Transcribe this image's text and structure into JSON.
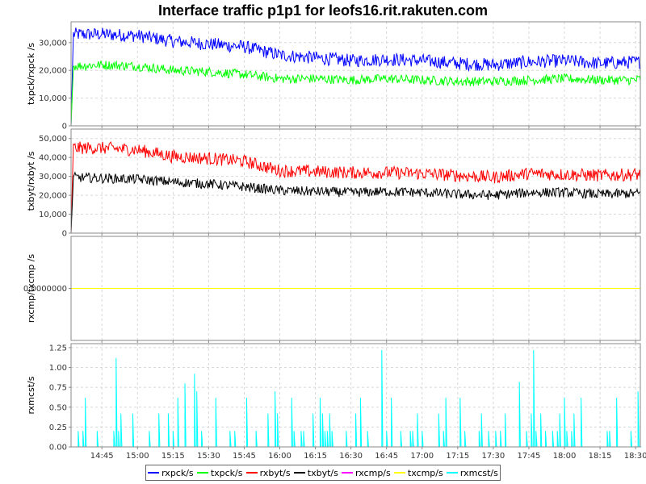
{
  "title": "Interface traffic p1p1 for leofs16.rit.rakuten.com",
  "chart_data": [
    {
      "type": "line",
      "ylabel": "txpck/rxpck /s",
      "ylim": [
        0,
        37500
      ],
      "yticks": [
        0,
        10000,
        20000,
        30000
      ],
      "ytick_labels": [
        "0",
        "10,000",
        "20,000",
        "30,000"
      ],
      "grid": true,
      "series": [
        {
          "name": "rxpck/s",
          "color": "#0000ff",
          "x": [
            "14:32",
            "14:45",
            "15:00",
            "15:15",
            "15:30",
            "15:45",
            "16:00",
            "16:15",
            "16:30",
            "16:45",
            "17:00",
            "17:15",
            "17:30",
            "17:45",
            "18:00",
            "18:15",
            "18:30",
            "18:32"
          ],
          "values": [
            33000,
            33000,
            32500,
            30500,
            29500,
            28500,
            25500,
            24500,
            23500,
            24000,
            23500,
            22500,
            22000,
            23000,
            23500,
            22500,
            23000,
            23000
          ]
        },
        {
          "name": "txpck/s",
          "color": "#00ff00",
          "x": [
            "14:32",
            "14:45",
            "15:00",
            "15:15",
            "15:30",
            "15:45",
            "16:00",
            "16:15",
            "16:30",
            "16:45",
            "17:00",
            "17:15",
            "17:30",
            "17:45",
            "18:00",
            "18:15",
            "18:30",
            "18:32"
          ],
          "values": [
            21500,
            22000,
            21500,
            20000,
            19500,
            18500,
            17000,
            17000,
            16500,
            17000,
            16500,
            16000,
            16000,
            16500,
            17000,
            16500,
            16500,
            17000
          ]
        }
      ]
    },
    {
      "type": "line",
      "ylabel": "txbyt/rxbyt /s",
      "ylim": [
        0,
        55000
      ],
      "yticks": [
        0,
        10000,
        20000,
        30000,
        40000,
        50000
      ],
      "ytick_labels": [
        "0",
        "10,000",
        "20,000",
        "30,000",
        "40,000",
        "50,000"
      ],
      "grid": true,
      "series": [
        {
          "name": "rxbyt/s",
          "color": "#ff0000",
          "x": [
            "14:32",
            "14:45",
            "15:00",
            "15:15",
            "15:30",
            "15:45",
            "16:00",
            "16:15",
            "16:30",
            "16:45",
            "17:00",
            "17:15",
            "17:30",
            "17:45",
            "18:00",
            "18:15",
            "18:30",
            "18:32"
          ],
          "values": [
            45000,
            45000,
            44000,
            40500,
            39500,
            38000,
            33000,
            32500,
            32000,
            32000,
            31500,
            30500,
            29500,
            31500,
            31000,
            30500,
            31000,
            31000
          ]
        },
        {
          "name": "txbyt/s",
          "color": "#000000",
          "x": [
            "14:32",
            "14:45",
            "15:00",
            "15:15",
            "15:30",
            "15:45",
            "16:00",
            "16:15",
            "16:30",
            "16:45",
            "17:00",
            "17:15",
            "17:30",
            "17:45",
            "18:00",
            "18:15",
            "18:30",
            "18:32"
          ],
          "values": [
            29500,
            29000,
            28500,
            27000,
            26000,
            24500,
            22500,
            22000,
            21500,
            22000,
            21500,
            20500,
            20000,
            21500,
            21500,
            20500,
            21000,
            21000
          ]
        }
      ]
    },
    {
      "type": "line",
      "ylabel": "rxcmp/txcmp /s",
      "ylim": [
        -1,
        1
      ],
      "yticks": [
        0
      ],
      "ytick_labels": [
        "0.0000000"
      ],
      "grid": true,
      "series": [
        {
          "name": "rxcmp/s",
          "color": "#ff00ff",
          "x": [
            "14:32",
            "18:32"
          ],
          "values": [
            0,
            0
          ]
        },
        {
          "name": "txcmp/s",
          "color": "#ffff00",
          "x": [
            "14:32",
            "18:32"
          ],
          "values": [
            0,
            0
          ]
        }
      ]
    },
    {
      "type": "line",
      "ylabel": "rxmcst/s",
      "ylim": [
        0,
        1.3
      ],
      "yticks": [
        0,
        0.25,
        0.5,
        0.75,
        1.0,
        1.25
      ],
      "ytick_labels": [
        "0.00",
        "0.25",
        "0.50",
        "0.75",
        "1.00",
        "1.25"
      ],
      "grid": true,
      "series": [
        {
          "name": "rxmcst/s",
          "color": "#00ffff",
          "x": [
            "14:38",
            "14:43",
            "14:51",
            "14:53",
            "15:05",
            "15:17",
            "15:20",
            "15:24",
            "15:25",
            "15:33",
            "15:46",
            "15:58",
            "16:05",
            "16:17",
            "16:21",
            "16:34",
            "16:43",
            "16:47",
            "16:58",
            "17:10",
            "17:16",
            "17:25",
            "17:41",
            "17:47",
            "18:00",
            "18:07",
            "18:22",
            "18:31"
          ],
          "values": [
            0.62,
            0.2,
            1.12,
            0.42,
            0.2,
            0.62,
            0.8,
            0.92,
            0.7,
            0.62,
            0.62,
            0.7,
            0.62,
            0.62,
            0.42,
            0.62,
            1.22,
            0.62,
            0.42,
            0.62,
            0.62,
            0.42,
            0.82,
            1.22,
            0.62,
            0.62,
            0.62,
            0.7
          ]
        }
      ]
    }
  ],
  "xaxis": {
    "xlim": [
      "14:32",
      "18:32"
    ],
    "tick_labels": [
      "14:45",
      "15:00",
      "15:15",
      "15:30",
      "15:45",
      "16:00",
      "16:15",
      "16:30",
      "16:45",
      "17:00",
      "17:15",
      "17:30",
      "17:45",
      "18:00",
      "18:15",
      "18:30"
    ]
  },
  "legend": {
    "placement": "bottom",
    "items": [
      {
        "label": "rxpck/s",
        "color": "#0000ff"
      },
      {
        "label": "txpck/s",
        "color": "#00ff00"
      },
      {
        "label": "rxbyt/s",
        "color": "#ff0000"
      },
      {
        "label": "txbyt/s",
        "color": "#000000"
      },
      {
        "label": "rxcmp/s",
        "color": "#ff00ff"
      },
      {
        "label": "txcmp/s",
        "color": "#ffff00"
      },
      {
        "label": "rxmcst/s",
        "color": "#00ffff"
      }
    ]
  }
}
